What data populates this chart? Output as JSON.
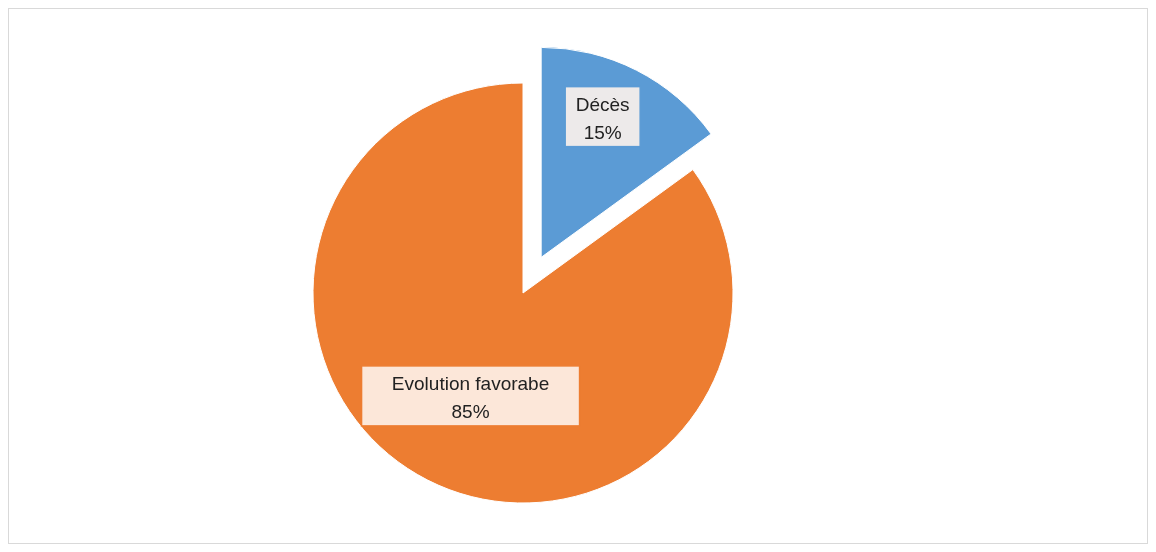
{
  "chart_data": {
    "type": "pie",
    "categories": [
      "Décès",
      "Evolution favorabe"
    ],
    "values": [
      15,
      85
    ],
    "colors": [
      "#5b9bd5",
      "#ed7d31"
    ],
    "value_labels": [
      "15%",
      "85%"
    ]
  }
}
